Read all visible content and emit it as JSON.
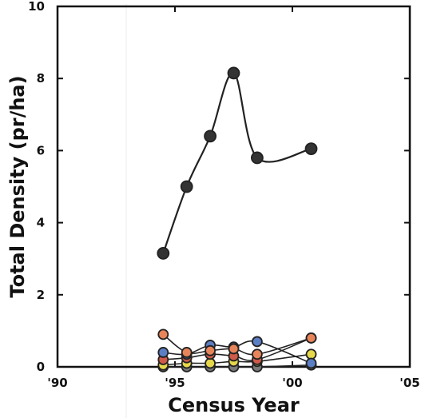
{
  "chart_data": {
    "type": "line",
    "title": "",
    "xlabel": "Census Year",
    "ylabel": "Total Density (pr/ha)",
    "xlim": [
      1990,
      2005
    ],
    "ylim": [
      0,
      10
    ],
    "x_ticks": [
      1990,
      1995,
      2000,
      2005
    ],
    "x_tick_labels": [
      "'90",
      "'95",
      "'00",
      "'05"
    ],
    "y_ticks": [
      0,
      2,
      4,
      6,
      8,
      10
    ],
    "y_tick_labels": [
      "0",
      "2",
      "4",
      "6",
      "8",
      "10"
    ],
    "grid": false,
    "legend": "none",
    "series": [
      {
        "color": "#222222",
        "marker_fill": "#333333",
        "marker_size": "large",
        "x": [
          1994.5,
          1995.5,
          1996.5,
          1997.5,
          1998.5,
          2000.8
        ],
        "y": [
          3.15,
          5.0,
          6.4,
          8.15,
          5.8,
          6.05
        ]
      },
      {
        "color": "#222222",
        "marker_fill": "#e8845a",
        "x": [
          1994.5,
          1995.5,
          1996.5,
          1997.5,
          1998.5,
          2000.8
        ],
        "y": [
          0.9,
          0.4,
          0.45,
          0.5,
          0.35,
          0.8
        ]
      },
      {
        "color": "#222222",
        "marker_fill": "#5b7fc4",
        "x": [
          1994.5,
          1995.5,
          1996.5,
          1997.5,
          1998.5,
          2000.8
        ],
        "y": [
          0.4,
          0.35,
          0.6,
          0.55,
          0.7,
          0.1
        ]
      },
      {
        "color": "#222222",
        "marker_fill": "#d05a4a",
        "x": [
          1994.5,
          1995.5,
          1996.5,
          1997.5,
          1998.5,
          2000.8
        ],
        "y": [
          0.2,
          0.25,
          0.35,
          0.3,
          0.2,
          0.8
        ]
      },
      {
        "color": "#222222",
        "marker_fill": "#e6d84a",
        "x": [
          1994.5,
          1995.5,
          1996.5,
          1997.5,
          1998.5,
          2000.8
        ],
        "y": [
          0.05,
          0.1,
          0.1,
          0.15,
          0.15,
          0.35
        ]
      },
      {
        "color": "#222222",
        "marker_fill": "#7a7a7a",
        "x": [
          1994.5,
          1995.5,
          1996.5,
          1997.5,
          1998.5,
          2000.8
        ],
        "y": [
          0.0,
          0.0,
          0.0,
          0.0,
          0.0,
          0.05
        ]
      }
    ]
  }
}
